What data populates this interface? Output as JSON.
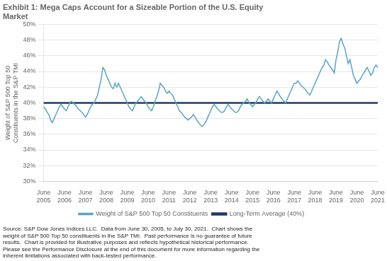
{
  "chart_data": {
    "type": "line",
    "title": "Exhibit 1: Mega Caps Account for a Sizeable Portion of the U.S. Equity\nMarket",
    "ylabel": "Weight of S&P 500 Top 50\nConstituents in the S&P TMI",
    "annotations": [
      "Source: S&P Dow Jones Indices LLC.  Data from June 30, 2005, to July 30, 2021.  Chart shows the\nweight of S&P 500 Top 50 constituents in the S&P TMI.  Past performance is no guarantee of future\nresults.  Chart is provided for illustrative purposes and reflects hypothetical historical performance.\nPlease see the Performance Disclosure at the end of this document for more information regarding the\ninherent limitations associated with back-tested performance."
    ],
    "categories": [
      "June\n2005",
      null,
      null,
      null,
      null,
      null,
      null,
      null,
      null,
      null,
      null,
      null,
      "June\n2006",
      null,
      null,
      null,
      null,
      null,
      null,
      null,
      null,
      null,
      null,
      null,
      "June\n2007",
      null,
      null,
      null,
      null,
      null,
      null,
      null,
      null,
      null,
      null,
      null,
      "June\n2008",
      null,
      null,
      null,
      null,
      null,
      null,
      null,
      null,
      null,
      null,
      null,
      "June\n2009",
      null,
      null,
      null,
      null,
      null,
      null,
      null,
      null,
      null,
      null,
      null,
      "June\n2010",
      null,
      null,
      null,
      null,
      null,
      null,
      null,
      null,
      null,
      null,
      null,
      "June\n2011",
      null,
      null,
      null,
      null,
      null,
      null,
      null,
      null,
      null,
      null,
      null,
      "June\n2012",
      null,
      null,
      null,
      null,
      null,
      null,
      null,
      null,
      null,
      null,
      null,
      "June\n2013",
      null,
      null,
      null,
      null,
      null,
      null,
      null,
      null,
      null,
      null,
      null,
      "June\n2014",
      null,
      null,
      null,
      null,
      null,
      null,
      null,
      null,
      null,
      null,
      null,
      "June\n2015",
      null,
      null,
      null,
      null,
      null,
      null,
      null,
      null,
      null,
      null,
      null,
      "June\n2016",
      null,
      null,
      null,
      null,
      null,
      null,
      null,
      null,
      null,
      null,
      null,
      "June\n2017",
      null,
      null,
      null,
      null,
      null,
      null,
      null,
      null,
      null,
      null,
      null,
      "June\n2018",
      null,
      null,
      null,
      null,
      null,
      null,
      null,
      null,
      null,
      null,
      null,
      "June\n2019",
      null,
      null,
      null,
      null,
      null,
      null,
      null,
      null,
      null,
      null,
      null,
      "June\n2020",
      null,
      null,
      null,
      null,
      null,
      null,
      null,
      null,
      null,
      null,
      null,
      "June\n2021"
    ],
    "series": [
      {
        "name": "Weight of S&P 500 Top 50 Constituents",
        "color": "#5BA3C9",
        "values": [
          39.5,
          39.2,
          38.8,
          38.5,
          37.8,
          37.5,
          38.0,
          38.5,
          39.0,
          39.5,
          39.8,
          39.5,
          39.2,
          39.0,
          39.5,
          40.0,
          40.2,
          40.0,
          39.8,
          39.5,
          39.2,
          39.0,
          38.8,
          38.5,
          38.2,
          38.5,
          39.0,
          39.5,
          39.8,
          40.0,
          40.5,
          41.0,
          42.0,
          43.0,
          44.5,
          44.2,
          43.5,
          43.0,
          42.5,
          42.0,
          41.8,
          42.5,
          42.0,
          42.5,
          42.0,
          41.5,
          41.0,
          40.5,
          40.0,
          39.5,
          39.2,
          39.0,
          39.5,
          40.0,
          40.2,
          40.5,
          40.8,
          40.5,
          40.2,
          40.0,
          39.5,
          39.2,
          39.0,
          39.5,
          40.2,
          40.8,
          41.5,
          42.5,
          42.2,
          42.0,
          41.5,
          41.2,
          41.5,
          41.2,
          41.0,
          40.5,
          40.0,
          39.5,
          39.0,
          38.8,
          38.5,
          38.2,
          38.0,
          37.8,
          38.0,
          38.2,
          38.5,
          38.2,
          37.8,
          37.5,
          37.2,
          37.0,
          37.2,
          37.5,
          38.0,
          38.5,
          39.0,
          39.5,
          39.8,
          39.5,
          39.2,
          39.0,
          38.8,
          38.8,
          39.0,
          39.5,
          39.8,
          39.5,
          39.2,
          39.0,
          38.8,
          38.8,
          39.0,
          39.5,
          39.8,
          40.0,
          40.2,
          40.5,
          40.0,
          39.8,
          39.5,
          39.8,
          40.0,
          40.5,
          40.8,
          40.5,
          40.2,
          40.0,
          40.2,
          40.5,
          40.2,
          40.0,
          40.5,
          41.0,
          41.5,
          41.2,
          40.8,
          40.5,
          40.2,
          40.0,
          40.5,
          41.0,
          41.5,
          42.0,
          42.5,
          42.5,
          42.8,
          42.5,
          42.2,
          42.0,
          41.8,
          41.5,
          41.2,
          41.0,
          41.5,
          42.0,
          42.5,
          43.0,
          43.5,
          44.0,
          44.5,
          44.8,
          45.5,
          45.2,
          44.8,
          44.5,
          44.2,
          43.8,
          45.5,
          46.5,
          47.8,
          48.2,
          47.5,
          47.0,
          46.0,
          45.0,
          45.5,
          44.5,
          43.5,
          43.0,
          42.5,
          42.8,
          43.0,
          43.5,
          43.8,
          44.2,
          44.5,
          44.0,
          43.5,
          43.8,
          44.5,
          44.8,
          44.5
        ]
      },
      {
        "name": "Long-Term Average (40%)",
        "color": "#1F3864",
        "values": [
          40.0,
          40.0,
          40.0,
          40.0,
          40.0,
          40.0,
          40.0,
          40.0,
          40.0,
          40.0,
          40.0,
          40.0,
          40.0,
          40.0,
          40.0,
          40.0,
          40.0,
          40.0,
          40.0,
          40.0,
          40.0,
          40.0,
          40.0,
          40.0,
          40.0,
          40.0,
          40.0,
          40.0,
          40.0,
          40.0,
          40.0,
          40.0,
          40.0,
          40.0,
          40.0,
          40.0,
          40.0,
          40.0,
          40.0,
          40.0,
          40.0,
          40.0,
          40.0,
          40.0,
          40.0,
          40.0,
          40.0,
          40.0,
          40.0,
          40.0,
          40.0,
          40.0,
          40.0,
          40.0,
          40.0,
          40.0,
          40.0,
          40.0,
          40.0,
          40.0,
          40.0,
          40.0,
          40.0,
          40.0,
          40.0,
          40.0,
          40.0,
          40.0,
          40.0,
          40.0,
          40.0,
          40.0,
          40.0,
          40.0,
          40.0,
          40.0,
          40.0,
          40.0,
          40.0,
          40.0,
          40.0,
          40.0,
          40.0,
          40.0,
          40.0,
          40.0,
          40.0,
          40.0,
          40.0,
          40.0,
          40.0,
          40.0,
          40.0,
          40.0,
          40.0,
          40.0,
          40.0,
          40.0,
          40.0,
          40.0,
          40.0,
          40.0,
          40.0,
          40.0,
          40.0,
          40.0,
          40.0,
          40.0,
          40.0,
          40.0,
          40.0,
          40.0,
          40.0,
          40.0,
          40.0,
          40.0,
          40.0,
          40.0,
          40.0,
          40.0,
          40.0,
          40.0,
          40.0,
          40.0,
          40.0,
          40.0,
          40.0,
          40.0,
          40.0,
          40.0,
          40.0,
          40.0,
          40.0,
          40.0,
          40.0,
          40.0,
          40.0,
          40.0,
          40.0,
          40.0,
          40.0,
          40.0,
          40.0,
          40.0,
          40.0,
          40.0,
          40.0,
          40.0,
          40.0,
          40.0,
          40.0,
          40.0,
          40.0,
          40.0,
          40.0,
          40.0,
          40.0,
          40.0,
          40.0,
          40.0,
          40.0,
          40.0,
          40.0,
          40.0,
          40.0,
          40.0,
          40.0,
          40.0,
          40.0,
          40.0,
          40.0,
          40.0,
          40.0,
          40.0,
          40.0,
          40.0,
          40.0,
          40.0,
          40.0,
          40.0,
          40.0,
          40.0,
          40.0,
          40.0,
          40.0,
          40.0,
          40.0,
          40.0,
          40.0,
          40.0,
          40.0,
          40.0,
          40.0
        ]
      }
    ],
    "ylim": [
      30,
      50
    ],
    "yticks": [
      {
        "value": 30,
        "label": "30%"
      },
      {
        "value": 32,
        "label": "32%"
      },
      {
        "value": 34,
        "label": "34%"
      },
      {
        "value": 36,
        "label": "36%"
      },
      {
        "value": 38,
        "label": "38%"
      },
      {
        "value": 40,
        "label": "40%"
      },
      {
        "value": 42,
        "label": "42%"
      },
      {
        "value": 44,
        "label": "44%"
      },
      {
        "value": 46,
        "label": "46%"
      },
      {
        "value": 48,
        "label": "48%"
      },
      {
        "value": 50,
        "label": "50%"
      }
    ],
    "grid": "y",
    "legend": "bottom"
  }
}
